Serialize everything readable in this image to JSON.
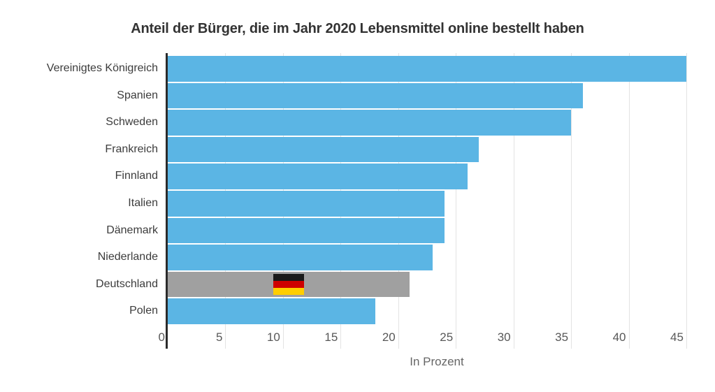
{
  "chart_data": {
    "type": "bar",
    "orientation": "horizontal",
    "title": "Anteil der Bürger, die im Jahr 2020 Lebensmittel online bestellt haben",
    "xlabel": "In Prozent",
    "categories": [
      "Vereinigtes Königreich",
      "Spanien",
      "Schweden",
      "Frankreich",
      "Finnland",
      "Italien",
      "Dänemark",
      "Niederlande",
      "Deutschland",
      "Polen"
    ],
    "values": [
      45,
      36,
      35,
      27,
      26,
      24,
      24,
      23,
      21,
      18
    ],
    "xticks": [
      0,
      5,
      10,
      15,
      20,
      25,
      30,
      35,
      40,
      45
    ],
    "xmax": 46.7,
    "grid": true,
    "legend": "none",
    "highlight": {
      "category": "Deutschland",
      "marker": "german-flag-icon"
    },
    "colors": {
      "bar": "#5bb5e4",
      "highlight_bar": "#a0a0a0",
      "axis_line": "#2b2b2b",
      "gridline": "#e3e3e3",
      "title_text": "#333333",
      "label_text": "#3c3c3c",
      "tick_text": "#585858",
      "xlabel_text": "#666666",
      "flag_black": "#1a1a1a",
      "flag_red": "#ce0000",
      "flag_gold": "#ffce00"
    }
  }
}
